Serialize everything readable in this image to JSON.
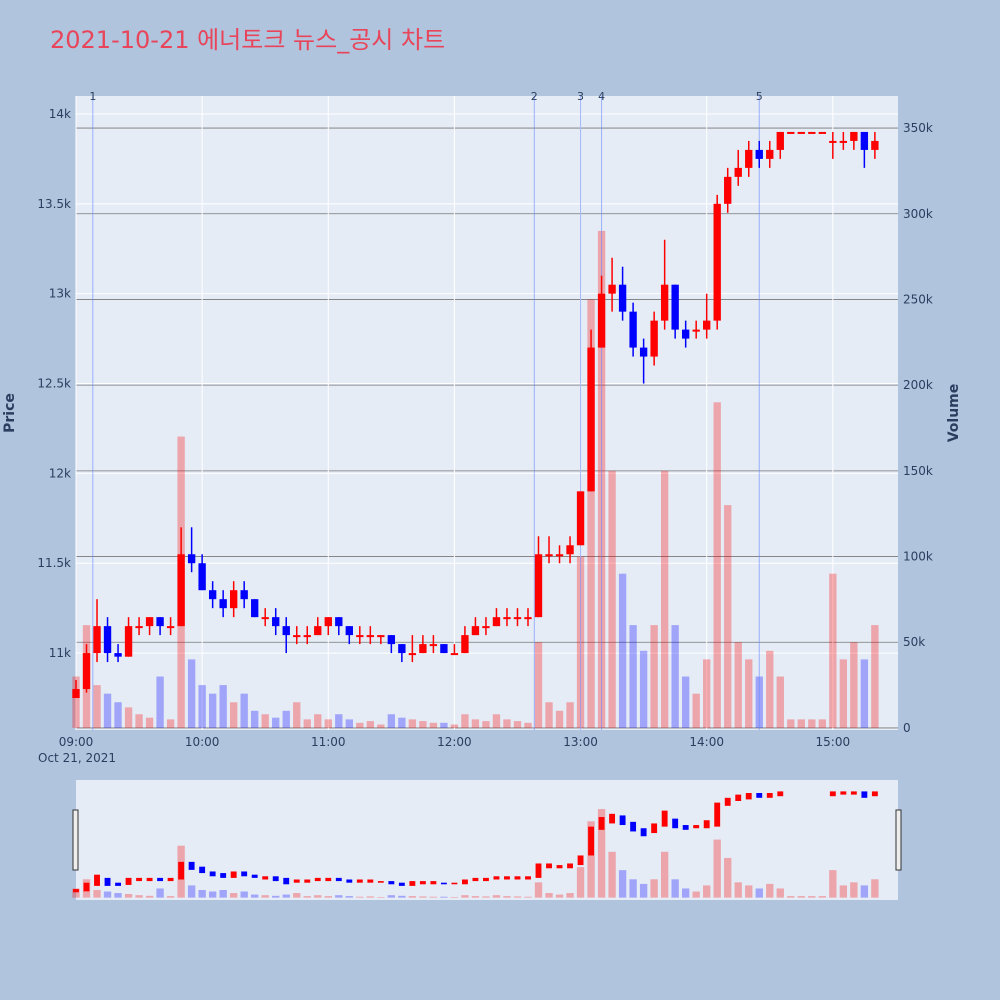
{
  "chart_data": {
    "type": "candlestick",
    "title": "2021-10-21 에너토크 뉴스_공시 차트",
    "y_label": "Price",
    "y2_label": "Volume",
    "date_label": "Oct 21, 2021",
    "increasing_color": "#ff0000",
    "decreasing_color": "#0000ff",
    "xlim": [
      "09:00",
      "15:31"
    ],
    "xticks": [
      "09:00",
      "10:00",
      "11:00",
      "12:00",
      "13:00",
      "14:00",
      "15:00"
    ],
    "ylim": [
      10572,
      14100
    ],
    "yticks": [
      {
        "value": 11000,
        "label": "11k"
      },
      {
        "value": 11500,
        "label": "11.5k"
      },
      {
        "value": 12000,
        "label": "12k"
      },
      {
        "value": 12500,
        "label": "12.5k"
      },
      {
        "value": 13000,
        "label": "13k"
      },
      {
        "value": 13500,
        "label": "13.5k"
      },
      {
        "value": 14000,
        "label": "14k"
      }
    ],
    "y2lim": [
      -1200,
      368700
    ],
    "y2ticks": [
      0,
      {
        "value": 50000,
        "label": "50k"
      },
      {
        "value": 100000,
        "label": "100k"
      },
      {
        "value": 150000,
        "label": "150k"
      },
      {
        "value": 200000,
        "label": "200k"
      },
      {
        "value": 250000,
        "label": "250k"
      },
      {
        "value": 300000,
        "label": "300k"
      },
      {
        "value": 350000,
        "label": "350k"
      }
    ],
    "news": [
      {
        "label": "1",
        "x": "09:08"
      },
      {
        "label": "2",
        "x": "12:38"
      },
      {
        "label": "3",
        "x": "13:00"
      },
      {
        "label": "4",
        "x": "13:10"
      },
      {
        "label": "5",
        "x": "14:25"
      }
    ],
    "x": [
      "09:00",
      "09:05",
      "09:10",
      "09:15",
      "09:20",
      "09:25",
      "09:30",
      "09:35",
      "09:40",
      "09:45",
      "09:50",
      "09:55",
      "10:00",
      "10:05",
      "10:10",
      "10:15",
      "10:20",
      "10:25",
      "10:30",
      "10:35",
      "10:40",
      "10:45",
      "10:50",
      "10:55",
      "11:00",
      "11:05",
      "11:10",
      "11:15",
      "11:20",
      "11:25",
      "11:30",
      "11:35",
      "11:40",
      "11:45",
      "11:50",
      "11:55",
      "12:00",
      "12:05",
      "12:10",
      "12:15",
      "12:20",
      "12:25",
      "12:30",
      "12:35",
      "12:40",
      "12:45",
      "12:50",
      "12:55",
      "13:00",
      "13:05",
      "13:10",
      "13:15",
      "13:20",
      "13:25",
      "13:30",
      "13:35",
      "13:40",
      "13:45",
      "13:50",
      "13:55",
      "14:00",
      "14:05",
      "14:10",
      "14:15",
      "14:20",
      "14:25",
      "14:30",
      "14:35",
      "14:40",
      "14:45",
      "14:50",
      "14:55",
      "15:00",
      "15:05",
      "15:10",
      "15:15",
      "15:20"
    ],
    "open": [
      10750,
      10800,
      11000,
      11150,
      11000,
      10980,
      11150,
      11150,
      11200,
      11150,
      11150,
      11550,
      11500,
      11350,
      11300,
      11250,
      11350,
      11300,
      11200,
      11200,
      11150,
      11100,
      11100,
      11100,
      11150,
      11200,
      11150,
      11100,
      11100,
      11100,
      11100,
      11050,
      11000,
      11000,
      11050,
      11050,
      11000,
      11000,
      11100,
      11150,
      11150,
      11200,
      11200,
      11200,
      11200,
      11550,
      11550,
      11550,
      11600,
      11900,
      12700,
      13000,
      13050,
      12900,
      12700,
      12650,
      12850,
      13050,
      12800,
      12800,
      12800,
      12850,
      13500,
      13650,
      13700,
      13800,
      13750,
      13800,
      13900,
      13900,
      13900,
      13900,
      13850,
      13850,
      13850,
      13900,
      13800
    ],
    "high": [
      10850,
      11050,
      11300,
      11200,
      11050,
      11200,
      11200,
      11200,
      11200,
      11200,
      11700,
      11700,
      11550,
      11400,
      11350,
      11400,
      11400,
      11300,
      11250,
      11250,
      11200,
      11150,
      11150,
      11200,
      11200,
      11200,
      11150,
      11150,
      11150,
      11100,
      11100,
      11050,
      11100,
      11100,
      11100,
      11050,
      11050,
      11150,
      11200,
      11200,
      11250,
      11250,
      11250,
      11250,
      11650,
      11650,
      11600,
      11650,
      11900,
      12800,
      13100,
      13200,
      13150,
      12950,
      12750,
      12900,
      13300,
      13050,
      12850,
      12850,
      13000,
      13550,
      13700,
      13800,
      13850,
      13850,
      13850,
      13900,
      13900,
      13900,
      13900,
      13900,
      13900,
      13900,
      13900,
      13900,
      13900
    ],
    "low": [
      10750,
      10780,
      10950,
      10950,
      10950,
      10980,
      11100,
      11100,
      11100,
      11100,
      11150,
      11450,
      11350,
      11250,
      11200,
      11200,
      11250,
      11200,
      11150,
      11100,
      11000,
      11050,
      11050,
      11100,
      11100,
      11100,
      11050,
      11050,
      11050,
      11050,
      11000,
      10950,
      10950,
      11000,
      11000,
      11000,
      11000,
      11000,
      11100,
      11100,
      11150,
      11150,
      11150,
      11150,
      11200,
      11500,
      11500,
      11500,
      11600,
      11900,
      12700,
      12900,
      12850,
      12650,
      12500,
      12600,
      12800,
      12750,
      12700,
      12750,
      12750,
      12800,
      13450,
      13600,
      13650,
      13700,
      13700,
      13750,
      13900,
      13900,
      13900,
      13900,
      13750,
      13800,
      13800,
      13700,
      13750
    ],
    "close": [
      10800,
      11000,
      11150,
      11000,
      10980,
      11150,
      11150,
      11200,
      11150,
      11150,
      11550,
      11500,
      11350,
      11300,
      11250,
      11350,
      11300,
      11200,
      11200,
      11150,
      11100,
      11100,
      11100,
      11150,
      11200,
      11150,
      11100,
      11100,
      11100,
      11100,
      11050,
      11000,
      11000,
      11050,
      11050,
      11000,
      11000,
      11100,
      11150,
      11150,
      11200,
      11200,
      11200,
      11200,
      11550,
      11550,
      11550,
      11600,
      11900,
      12700,
      13000,
      13050,
      12900,
      12700,
      12650,
      12850,
      13050,
      12800,
      12750,
      12800,
      12850,
      13500,
      13650,
      13700,
      13800,
      13750,
      13800,
      13900,
      13900,
      13900,
      13900,
      13900,
      13850,
      13850,
      13900,
      13800,
      13850
    ],
    "volume": [
      30000,
      60000,
      25000,
      20000,
      15000,
      12000,
      8000,
      6000,
      30000,
      5000,
      170000,
      40000,
      25000,
      20000,
      25000,
      15000,
      20000,
      10000,
      8000,
      6000,
      10000,
      15000,
      5000,
      8000,
      5000,
      8000,
      5000,
      3000,
      4000,
      2000,
      8000,
      6000,
      5000,
      4000,
      3000,
      3000,
      2000,
      8000,
      5000,
      4000,
      8000,
      5000,
      4000,
      3000,
      50000,
      15000,
      10000,
      15000,
      100000,
      250000,
      290000,
      150000,
      90000,
      60000,
      45000,
      60000,
      150000,
      60000,
      30000,
      20000,
      40000,
      190000,
      130000,
      50000,
      40000,
      30000,
      45000,
      30000,
      5000,
      5000,
      5000,
      5000,
      90000,
      40000,
      50000,
      40000,
      60000
    ]
  }
}
